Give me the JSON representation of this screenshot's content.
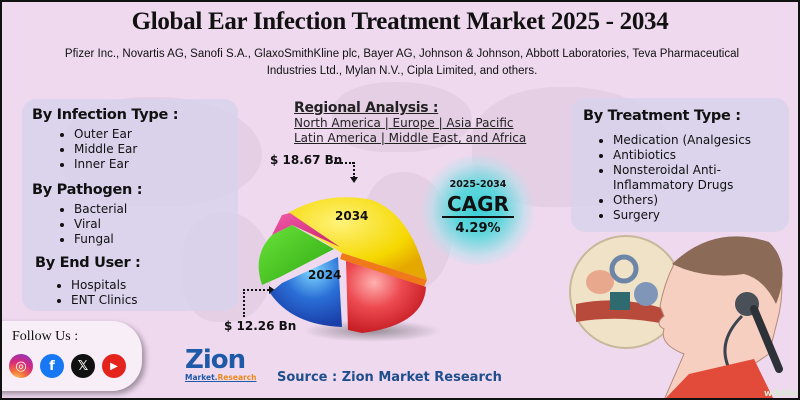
{
  "header": {
    "title": "Global Ear Infection Treatment Market 2025 - 2034",
    "companies": "Pfizer Inc., Novartis AG, Sanofi S.A., GlaxoSmithKline plc, Bayer AG, Johnson & Johnson, Abbott Laboratories, Teva Pharmaceutical Industries Ltd., Mylan N.V., Cipla Limited, and others."
  },
  "left_panel": {
    "infection_type": {
      "title": "By Infection Type :",
      "items": [
        "Outer Ear",
        "Middle Ear",
        "Inner Ear"
      ]
    },
    "pathogen": {
      "title": "By Pathogen :",
      "items": [
        "Bacterial",
        "Viral",
        "Fungal"
      ]
    },
    "end_user": {
      "title": "By End User :",
      "items": [
        "Hospitals",
        "ENT Clinics"
      ]
    }
  },
  "regional": {
    "title": "Regional Analysis :",
    "line1": "North America | Europe | Asia Pacific",
    "line2": "Latin America | Middle East, and Africa"
  },
  "right_panel": {
    "treatment_type": {
      "title": "By Treatment Type :",
      "items": [
        "Medication (Analgesics",
        "Antibiotics",
        "Nonsteroidal Anti-",
        "Inflammatory Drugs",
        "Others)",
        "Surgery"
      ]
    }
  },
  "cagr": {
    "period": "2025-2034",
    "label": "CAGR",
    "value": "4.29%"
  },
  "chart_data": {
    "type": "pie",
    "title": "Global Ear Infection Treatment Market 2025 - 2034",
    "categories": [
      "2024",
      "2034"
    ],
    "values": [
      12.26,
      18.67
    ],
    "value_labels": [
      "$ 12.26 Bn",
      "$ 18.67 Bn"
    ],
    "unit": "USD Billion",
    "annotations": [
      "2025-2034 CAGR 4.29%"
    ],
    "slice_colors": [
      "#f5d800",
      "#e5323c",
      "#2a6fd6",
      "#3fcb1c",
      "#e0338a"
    ]
  },
  "labels": {
    "value_2034": "$ 18.67 Bn",
    "value_2024": "$ 12.26 Bn",
    "year_2034": "2034",
    "year_2024": "2024"
  },
  "footer": {
    "follow_us": "Follow Us :",
    "social": [
      "instagram",
      "facebook",
      "x",
      "youtube"
    ],
    "logo_main": "Zion",
    "logo_sub_a": "Market.",
    "logo_sub_b": "Research",
    "source": "Source : Zion Market Research",
    "watermark": "wikiHow"
  },
  "colors": {
    "background": "#efd9ef",
    "panel": "#d6d2ec",
    "brand_blue": "#1f5aa8",
    "cagr_teal": "#3ccfd6"
  }
}
